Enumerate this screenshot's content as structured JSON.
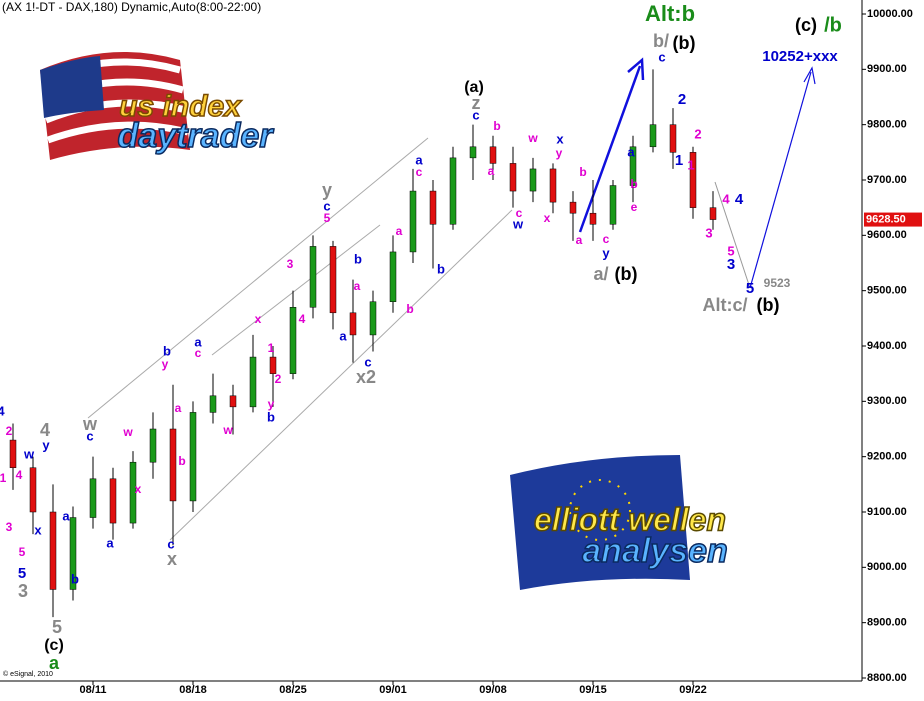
{
  "chart_data": {
    "type": "candlestick",
    "title": "(AX 1!-DT - DAX,180) Dynamic,Auto(8:00-22:00)",
    "copyright": "© eSignal, 2010",
    "categories": [
      null,
      null,
      null,
      null,
      "08/11",
      null,
      null,
      null,
      null,
      "08/18",
      null,
      null,
      null,
      null,
      "08/25",
      null,
      null,
      null,
      null,
      "09/01",
      null,
      null,
      null,
      null,
      "09/08",
      null,
      null,
      null,
      null,
      "09/15",
      null,
      null,
      null,
      null,
      "09/22",
      null
    ],
    "open": [
      9230,
      9180,
      9100,
      8960,
      9090,
      9160,
      9080,
      9190,
      9250,
      9120,
      9280,
      9310,
      9290,
      9380,
      9350,
      9470,
      9580,
      9460,
      9420,
      9480,
      9570,
      9680,
      9620,
      9740,
      9760,
      9730,
      9680,
      9720,
      9660,
      9640,
      9620,
      9690,
      9760,
      9800,
      9750,
      9650
    ],
    "high": [
      9260,
      9200,
      9150,
      9110,
      9200,
      9180,
      9210,
      9280,
      9330,
      9300,
      9350,
      9330,
      9420,
      9400,
      9500,
      9600,
      9590,
      9520,
      9500,
      9600,
      9720,
      9700,
      9760,
      9800,
      9780,
      9760,
      9740,
      9730,
      9680,
      9700,
      9700,
      9780,
      9900,
      9830,
      9760,
      9680
    ],
    "low": [
      9140,
      9060,
      8910,
      8940,
      9070,
      9050,
      9070,
      9160,
      9040,
      9100,
      9260,
      9240,
      9280,
      9290,
      9340,
      9450,
      9430,
      9370,
      9390,
      9460,
      9550,
      9540,
      9610,
      9700,
      9700,
      9650,
      9660,
      9640,
      9590,
      9590,
      9610,
      9660,
      9750,
      9720,
      9630,
      9610
    ],
    "close": [
      9180,
      9100,
      8960,
      9090,
      9160,
      9080,
      9190,
      9250,
      9120,
      9280,
      9310,
      9290,
      9380,
      9350,
      9470,
      9580,
      9460,
      9420,
      9480,
      9570,
      9680,
      9620,
      9740,
      9760,
      9730,
      9680,
      9720,
      9660,
      9640,
      9620,
      9690,
      9760,
      9800,
      9750,
      9650,
      9628.5
    ],
    "up_color": "#1a9a1a",
    "down_color": "#e01010",
    "last_price": {
      "value": 9628.5,
      "label": "9628.50"
    },
    "ylim": [
      8800,
      10000
    ],
    "yticks": [
      {
        "value": 8800,
        "label": "8800.00"
      },
      {
        "value": 8900,
        "label": "8900.00"
      },
      {
        "value": 9000,
        "label": "9000.00"
      },
      {
        "value": 9100,
        "label": "9100.00"
      },
      {
        "value": 9200,
        "label": "9200.00"
      },
      {
        "value": 9300,
        "label": "9300.00"
      },
      {
        "value": 9400,
        "label": "9400.00"
      },
      {
        "value": 9500,
        "label": "9500.00"
      },
      {
        "value": 9600,
        "label": "9600.00"
      },
      {
        "value": 9700,
        "label": "9700.00"
      },
      {
        "value": 9800,
        "label": "9800.00"
      },
      {
        "value": 9900,
        "label": "9900.00"
      },
      {
        "value": 10000,
        "label": "10000.00"
      }
    ],
    "annotations": [
      {
        "text": "4",
        "color": "#0000cc"
      },
      {
        "text": "2",
        "color": "#e000d0"
      },
      {
        "text": "w",
        "color": "#0000cc"
      },
      {
        "text": "y",
        "color": "#0000cc"
      },
      {
        "text": "4",
        "color": "#888888"
      },
      {
        "text": "w",
        "color": "#888888"
      },
      {
        "text": "c",
        "color": "#0000cc"
      },
      {
        "text": "1",
        "color": "#e000d0"
      },
      {
        "text": "4",
        "color": "#e000d0"
      },
      {
        "text": "3",
        "color": "#e000d0"
      },
      {
        "text": "x",
        "color": "#0000cc"
      },
      {
        "text": "5",
        "color": "#e000d0"
      },
      {
        "text": "5",
        "color": "#0000cc"
      },
      {
        "text": "3",
        "color": "#888888"
      },
      {
        "text": "a",
        "color": "#0000cc"
      },
      {
        "text": "b",
        "color": "#0000cc"
      },
      {
        "text": "a",
        "color": "#0000cc"
      },
      {
        "text": "5",
        "color": "#888888"
      },
      {
        "text": "(c)",
        "color": "#000000"
      },
      {
        "text": "a",
        "color": "#1a8c1a"
      },
      {
        "text": "b",
        "color": "#0000cc"
      },
      {
        "text": "y",
        "color": "#e000d0"
      },
      {
        "text": "a",
        "color": "#0000cc"
      },
      {
        "text": "c",
        "color": "#e000d0"
      },
      {
        "text": "w",
        "color": "#e000d0"
      },
      {
        "text": "a",
        "color": "#e000d0"
      },
      {
        "text": "b",
        "color": "#e000d0"
      },
      {
        "text": "x",
        "color": "#e000d0"
      },
      {
        "text": "w",
        "color": "#e000d0"
      },
      {
        "text": "c",
        "color": "#0000cc"
      },
      {
        "text": "x",
        "color": "#888888"
      },
      {
        "text": "x",
        "color": "#e000d0"
      },
      {
        "text": "1",
        "color": "#e000d0"
      },
      {
        "text": "2",
        "color": "#e000d0"
      },
      {
        "text": "y",
        "color": "#e000d0"
      },
      {
        "text": "b",
        "color": "#0000cc"
      },
      {
        "text": "3",
        "color": "#e000d0"
      },
      {
        "text": "4",
        "color": "#e000d0"
      },
      {
        "text": "y",
        "color": "#888888"
      },
      {
        "text": "c",
        "color": "#0000cc"
      },
      {
        "text": "5",
        "color": "#e000d0"
      },
      {
        "text": "a",
        "color": "#0000cc"
      },
      {
        "text": "b",
        "color": "#0000cc"
      },
      {
        "text": "a",
        "color": "#e000d0"
      },
      {
        "text": "c",
        "color": "#0000cc"
      },
      {
        "text": "x2",
        "color": "#888888"
      },
      {
        "text": "a",
        "color": "#e000d0"
      },
      {
        "text": "b",
        "color": "#e000d0"
      },
      {
        "text": "b",
        "color": "#0000cc"
      },
      {
        "text": "a",
        "color": "#0000cc"
      },
      {
        "text": "c",
        "color": "#e000d0"
      },
      {
        "text": "(a)",
        "color": "#000000"
      },
      {
        "text": "z",
        "color": "#888888"
      },
      {
        "text": "c",
        "color": "#0000cc"
      },
      {
        "text": "b",
        "color": "#e000d0"
      },
      {
        "text": "a",
        "color": "#e000d0"
      },
      {
        "text": "w",
        "color": "#e000d0"
      },
      {
        "text": "y",
        "color": "#e000d0"
      },
      {
        "text": "x",
        "color": "#0000cc"
      },
      {
        "text": "c",
        "color": "#e000d0"
      },
      {
        "text": "w",
        "color": "#0000cc"
      },
      {
        "text": "x",
        "color": "#e000d0"
      },
      {
        "text": "b",
        "color": "#e000d0"
      },
      {
        "text": "a",
        "color": "#e000d0"
      },
      {
        "text": "c",
        "color": "#e000d0"
      },
      {
        "text": "y",
        "color": "#0000cc"
      },
      {
        "text": "a/",
        "color": "#888888"
      },
      {
        "text": "(b)",
        "color": "#000000"
      },
      {
        "text": "b",
        "color": "#e000d0"
      },
      {
        "text": "e",
        "color": "#e000d0"
      },
      {
        "text": "a",
        "color": "#0000cc"
      },
      {
        "text": "c",
        "color": "#0000cc"
      },
      {
        "text": "2",
        "color": "#0000cc"
      },
      {
        "text": "1",
        "color": "#0000cc"
      },
      {
        "text": "2",
        "color": "#e000d0"
      },
      {
        "text": "1",
        "color": "#e000d0"
      },
      {
        "text": "3",
        "color": "#e000d0"
      },
      {
        "text": "4",
        "color": "#e000d0"
      },
      {
        "text": "4",
        "color": "#0000cc"
      },
      {
        "text": "5",
        "color": "#e000d0"
      },
      {
        "text": "3",
        "color": "#0000cc"
      },
      {
        "text": "5",
        "color": "#0000cc"
      },
      {
        "text": "9523",
        "color": "#888888"
      },
      {
        "text": "Alt:c/",
        "color": "#888888"
      },
      {
        "text": "(b)",
        "color": "#000000"
      },
      {
        "text": "b/",
        "color": "#888888"
      },
      {
        "text": "(b)",
        "color": "#000000"
      },
      {
        "text": "Alt:b",
        "color": "#1a8c1a"
      },
      {
        "text": "(c)",
        "color": "#000000"
      },
      {
        "text": "/b",
        "color": "#1a8c1a"
      },
      {
        "text": "10252+xxx",
        "color": "#0000cc"
      }
    ],
    "logos": [
      {
        "lines": [
          "us index",
          "daytrader"
        ]
      },
      {
        "lines": [
          "elliott wellen",
          "analysen"
        ]
      }
    ]
  }
}
